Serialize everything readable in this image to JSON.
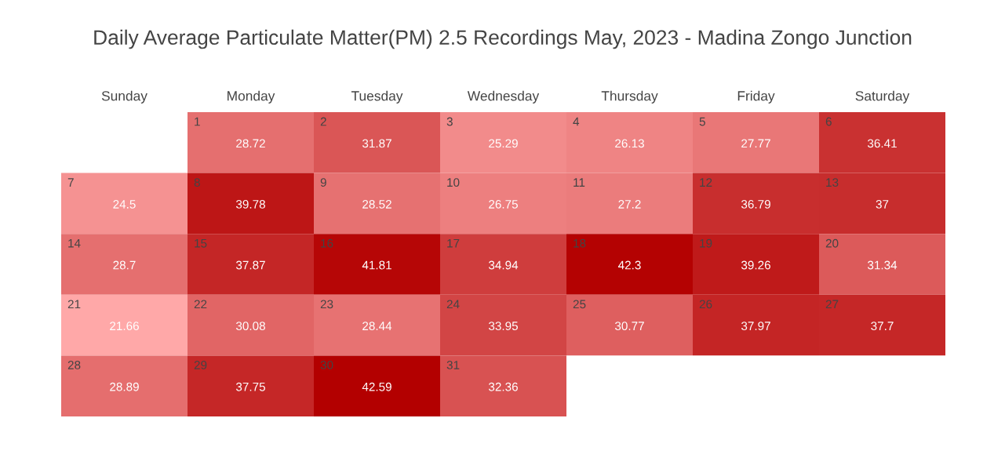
{
  "chart_data": {
    "type": "heatmap",
    "title": "Daily Average Particulate Matter(PM) 2.5 Recordings May, 2023 - Madina Zongo Junction",
    "categories": [
      "Sunday",
      "Monday",
      "Tuesday",
      "Wednesday",
      "Thursday",
      "Friday",
      "Saturday"
    ],
    "y_categories": [
      null,
      null,
      null,
      null,
      null
    ],
    "cells": [
      [
        null,
        28.72,
        31.87,
        25.29,
        26.13,
        27.77,
        36.41
      ],
      [
        24.5,
        39.78,
        28.52,
        26.75,
        27.2,
        36.79,
        37
      ],
      [
        28.7,
        37.87,
        41.81,
        34.94,
        42.3,
        39.26,
        31.34
      ],
      [
        21.66,
        30.08,
        28.44,
        33.95,
        30.77,
        37.97,
        37.7
      ],
      [
        28.89,
        37.75,
        42.59,
        32.36,
        null,
        null,
        null
      ]
    ],
    "annotations": [
      "1",
      "2",
      "3",
      "4",
      "5",
      "6",
      "7",
      "8",
      "9",
      "10",
      "11",
      "12",
      "13",
      "14",
      "15",
      "16",
      "17",
      "18",
      "19",
      "20",
      "21",
      "22",
      "23",
      "24",
      "25",
      "26",
      "27",
      "28",
      "29",
      "30",
      "31"
    ],
    "data_labels": true,
    "tick_labels": "x"
  }
}
